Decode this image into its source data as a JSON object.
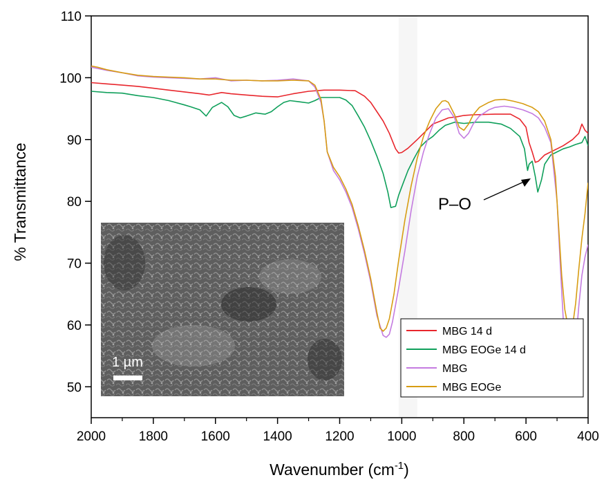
{
  "chart_data": {
    "type": "line",
    "xlabel": "Wavenumber  (cm",
    "xlabel_superscript": "-1",
    "xlabel_close": ")",
    "ylabel": "% Transmittance",
    "xlim": [
      2000,
      400
    ],
    "ylim": [
      45,
      110
    ],
    "x_ticks": [
      "2000",
      "1800",
      "1600",
      "1400",
      "1200",
      "1000",
      "800",
      "600",
      "400"
    ],
    "y_ticks": [
      "50",
      "60",
      "70",
      "80",
      "90",
      "100",
      "110"
    ],
    "grid": false,
    "legend_position": "bottom-right",
    "series": [
      {
        "name": "MBG 14 d",
        "color": "#e8262c",
        "points": [
          [
            2000,
            99.2
          ],
          [
            1950,
            99.0
          ],
          [
            1900,
            98.8
          ],
          [
            1850,
            98.6
          ],
          [
            1800,
            98.3
          ],
          [
            1750,
            98.0
          ],
          [
            1700,
            97.7
          ],
          [
            1650,
            97.4
          ],
          [
            1620,
            97.2
          ],
          [
            1580,
            97.6
          ],
          [
            1550,
            97.4
          ],
          [
            1500,
            97.2
          ],
          [
            1450,
            97.0
          ],
          [
            1400,
            96.9
          ],
          [
            1350,
            97.4
          ],
          [
            1300,
            97.8
          ],
          [
            1250,
            98.0
          ],
          [
            1200,
            98.0
          ],
          [
            1150,
            97.9
          ],
          [
            1120,
            97.0
          ],
          [
            1100,
            96.0
          ],
          [
            1080,
            94.5
          ],
          [
            1060,
            93.0
          ],
          [
            1040,
            91.0
          ],
          [
            1020,
            88.5
          ],
          [
            1010,
            87.8
          ],
          [
            1000,
            87.9
          ],
          [
            980,
            88.6
          ],
          [
            950,
            90.0
          ],
          [
            920,
            91.5
          ],
          [
            900,
            92.5
          ],
          [
            870,
            93.1
          ],
          [
            850,
            93.5
          ],
          [
            820,
            93.7
          ],
          [
            800,
            93.9
          ],
          [
            770,
            94.0
          ],
          [
            700,
            94.1
          ],
          [
            650,
            94.1
          ],
          [
            620,
            93.3
          ],
          [
            600,
            92.0
          ],
          [
            590,
            89.5
          ],
          [
            580,
            88.0
          ],
          [
            570,
            86.3
          ],
          [
            560,
            86.5
          ],
          [
            540,
            87.5
          ],
          [
            520,
            88.0
          ],
          [
            500,
            88.5
          ],
          [
            480,
            89.0
          ],
          [
            450,
            90.0
          ],
          [
            430,
            91.0
          ],
          [
            420,
            92.5
          ],
          [
            410,
            91.5
          ],
          [
            400,
            91.0
          ]
        ]
      },
      {
        "name": "MBG EOGe 14 d",
        "color": "#0e9f5a",
        "points": [
          [
            2000,
            97.8
          ],
          [
            1950,
            97.6
          ],
          [
            1900,
            97.5
          ],
          [
            1850,
            97.1
          ],
          [
            1800,
            96.8
          ],
          [
            1750,
            96.3
          ],
          [
            1700,
            95.6
          ],
          [
            1680,
            95.3
          ],
          [
            1650,
            94.8
          ],
          [
            1630,
            93.8
          ],
          [
            1610,
            95.2
          ],
          [
            1580,
            96.0
          ],
          [
            1560,
            95.3
          ],
          [
            1540,
            93.9
          ],
          [
            1520,
            93.5
          ],
          [
            1500,
            93.8
          ],
          [
            1470,
            94.3
          ],
          [
            1440,
            94.1
          ],
          [
            1420,
            94.5
          ],
          [
            1400,
            95.3
          ],
          [
            1380,
            96.0
          ],
          [
            1360,
            96.3
          ],
          [
            1330,
            96.1
          ],
          [
            1300,
            95.9
          ],
          [
            1280,
            96.3
          ],
          [
            1260,
            96.8
          ],
          [
            1240,
            96.8
          ],
          [
            1200,
            96.8
          ],
          [
            1180,
            96.4
          ],
          [
            1160,
            95.5
          ],
          [
            1140,
            93.8
          ],
          [
            1120,
            92.0
          ],
          [
            1100,
            89.8
          ],
          [
            1080,
            87.3
          ],
          [
            1060,
            84.5
          ],
          [
            1045,
            81.5
          ],
          [
            1035,
            79.0
          ],
          [
            1020,
            79.2
          ],
          [
            1010,
            81.0
          ],
          [
            995,
            83.0
          ],
          [
            980,
            85.0
          ],
          [
            960,
            87.0
          ],
          [
            940,
            88.8
          ],
          [
            920,
            89.8
          ],
          [
            900,
            90.5
          ],
          [
            880,
            91.5
          ],
          [
            860,
            92.3
          ],
          [
            830,
            92.8
          ],
          [
            800,
            92.6
          ],
          [
            760,
            92.8
          ],
          [
            720,
            92.8
          ],
          [
            680,
            92.5
          ],
          [
            650,
            91.8
          ],
          [
            620,
            90.5
          ],
          [
            605,
            88.5
          ],
          [
            595,
            85.0
          ],
          [
            590,
            86.0
          ],
          [
            580,
            86.5
          ],
          [
            570,
            84.0
          ],
          [
            562,
            81.5
          ],
          [
            550,
            83.5
          ],
          [
            540,
            86.0
          ],
          [
            520,
            87.5
          ],
          [
            500,
            88.0
          ],
          [
            480,
            88.5
          ],
          [
            460,
            88.8
          ],
          [
            440,
            89.2
          ],
          [
            420,
            89.5
          ],
          [
            410,
            90.5
          ],
          [
            400,
            89.0
          ]
        ]
      },
      {
        "name": "MBG",
        "color": "#c47be0",
        "points": [
          [
            2000,
            101.7
          ],
          [
            1980,
            101.5
          ],
          [
            1950,
            101.2
          ],
          [
            1900,
            100.8
          ],
          [
            1850,
            100.3
          ],
          [
            1800,
            100.1
          ],
          [
            1750,
            100.0
          ],
          [
            1700,
            99.9
          ],
          [
            1650,
            99.8
          ],
          [
            1600,
            100.0
          ],
          [
            1580,
            99.8
          ],
          [
            1550,
            99.5
          ],
          [
            1500,
            99.6
          ],
          [
            1450,
            99.5
          ],
          [
            1400,
            99.6
          ],
          [
            1350,
            99.8
          ],
          [
            1300,
            99.5
          ],
          [
            1280,
            98.5
          ],
          [
            1260,
            96.0
          ],
          [
            1250,
            93.0
          ],
          [
            1240,
            88.0
          ],
          [
            1220,
            85.0
          ],
          [
            1200,
            83.5
          ],
          [
            1180,
            81.5
          ],
          [
            1160,
            79.0
          ],
          [
            1140,
            75.5
          ],
          [
            1120,
            71.5
          ],
          [
            1100,
            67.0
          ],
          [
            1080,
            61.5
          ],
          [
            1060,
            58.3
          ],
          [
            1050,
            58.0
          ],
          [
            1040,
            58.5
          ],
          [
            1030,
            60.5
          ],
          [
            1010,
            66.0
          ],
          [
            990,
            72.0
          ],
          [
            970,
            78.5
          ],
          [
            950,
            84.0
          ],
          [
            930,
            88.0
          ],
          [
            910,
            91.0
          ],
          [
            890,
            93.5
          ],
          [
            870,
            94.8
          ],
          [
            850,
            95.0
          ],
          [
            830,
            93.5
          ],
          [
            815,
            91.0
          ],
          [
            800,
            90.2
          ],
          [
            785,
            91.0
          ],
          [
            770,
            92.5
          ],
          [
            750,
            93.8
          ],
          [
            720,
            94.8
          ],
          [
            700,
            95.2
          ],
          [
            670,
            95.4
          ],
          [
            640,
            95.2
          ],
          [
            610,
            94.8
          ],
          [
            580,
            94.2
          ],
          [
            560,
            93.5
          ],
          [
            540,
            92.0
          ],
          [
            520,
            89.5
          ],
          [
            500,
            80.0
          ],
          [
            490,
            70.0
          ],
          [
            480,
            61.0
          ],
          [
            470,
            56.0
          ],
          [
            460,
            52.5
          ],
          [
            455,
            51.5
          ],
          [
            450,
            52.5
          ],
          [
            440,
            57.0
          ],
          [
            430,
            63.0
          ],
          [
            420,
            68.0
          ],
          [
            410,
            71.0
          ],
          [
            400,
            73.0
          ]
        ]
      },
      {
        "name": "MBG EOGe",
        "color": "#d79c12",
        "points": [
          [
            2000,
            101.9
          ],
          [
            1980,
            101.7
          ],
          [
            1950,
            101.3
          ],
          [
            1900,
            100.8
          ],
          [
            1850,
            100.4
          ],
          [
            1800,
            100.2
          ],
          [
            1750,
            100.1
          ],
          [
            1700,
            100.0
          ],
          [
            1650,
            99.8
          ],
          [
            1600,
            99.8
          ],
          [
            1550,
            99.6
          ],
          [
            1500,
            99.6
          ],
          [
            1450,
            99.5
          ],
          [
            1400,
            99.5
          ],
          [
            1350,
            99.6
          ],
          [
            1300,
            99.5
          ],
          [
            1280,
            98.8
          ],
          [
            1260,
            96.5
          ],
          [
            1250,
            93.0
          ],
          [
            1240,
            88.0
          ],
          [
            1220,
            85.5
          ],
          [
            1200,
            84.0
          ],
          [
            1180,
            82.0
          ],
          [
            1160,
            79.5
          ],
          [
            1140,
            76.0
          ],
          [
            1120,
            72.0
          ],
          [
            1100,
            67.5
          ],
          [
            1080,
            62.0
          ],
          [
            1070,
            59.5
          ],
          [
            1060,
            59.0
          ],
          [
            1050,
            59.5
          ],
          [
            1040,
            61.0
          ],
          [
            1025,
            65.0
          ],
          [
            1010,
            70.5
          ],
          [
            990,
            77.0
          ],
          [
            970,
            82.5
          ],
          [
            950,
            87.0
          ],
          [
            930,
            90.5
          ],
          [
            910,
            93.0
          ],
          [
            890,
            95.0
          ],
          [
            870,
            96.2
          ],
          [
            860,
            96.3
          ],
          [
            850,
            96.0
          ],
          [
            830,
            94.0
          ],
          [
            815,
            92.0
          ],
          [
            800,
            91.5
          ],
          [
            785,
            92.5
          ],
          [
            770,
            94.0
          ],
          [
            750,
            95.2
          ],
          [
            720,
            96.0
          ],
          [
            700,
            96.4
          ],
          [
            670,
            96.5
          ],
          [
            640,
            96.2
          ],
          [
            610,
            95.8
          ],
          [
            580,
            95.2
          ],
          [
            560,
            94.5
          ],
          [
            540,
            93.0
          ],
          [
            520,
            90.0
          ],
          [
            505,
            84.0
          ],
          [
            495,
            76.0
          ],
          [
            485,
            68.0
          ],
          [
            475,
            62.5
          ],
          [
            465,
            59.8
          ],
          [
            458,
            59.0
          ],
          [
            450,
            59.8
          ],
          [
            440,
            63.5
          ],
          [
            430,
            69.0
          ],
          [
            420,
            74.0
          ],
          [
            410,
            78.0
          ],
          [
            400,
            83.0
          ]
        ]
      }
    ],
    "annotations": [
      {
        "text": "P–O",
        "target": [
          568,
          83
        ]
      }
    ]
  },
  "inset": {
    "scale_label": "1 µm"
  }
}
